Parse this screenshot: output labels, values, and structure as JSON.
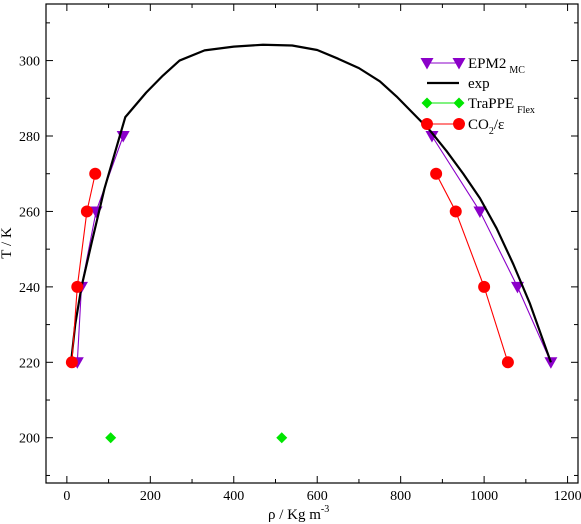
{
  "chart_data": {
    "type": "line",
    "title": "",
    "xlabel": {
      "main": "ρ    /    Kg m",
      "sup": "-3"
    },
    "ylabel": "T  /  K",
    "xlim": [
      -50,
      1225
    ],
    "ylim": [
      188,
      315
    ],
    "xticks": [
      0,
      200,
      400,
      600,
      800,
      1000,
      1200
    ],
    "yticks": [
      200,
      220,
      240,
      260,
      280,
      300
    ],
    "grid": false,
    "legend_position": "top-right",
    "series": [
      {
        "name": "EPM2",
        "name_sub": "MC",
        "color": "#8b00c9",
        "marker": "triangle-down",
        "line": true,
        "branches": [
          {
            "x": [
              25,
              35,
              70,
              135
            ],
            "y": [
              220,
              240,
              260,
              280
            ]
          },
          {
            "x": [
              875,
              990,
              1080,
              1160
            ],
            "y": [
              280,
              260,
              240,
              220
            ]
          }
        ]
      },
      {
        "name": "exp",
        "color": "#000000",
        "marker": "none",
        "line": true,
        "branches": [
          {
            "x": [
              10,
              20,
              35,
              60,
              90,
              140,
              190,
              230,
              270,
              330,
              400,
              470,
              540,
              600,
              650,
              700,
              750,
              790,
              830,
              870,
              910,
              950,
              990,
              1030,
              1070,
              1110,
              1160
            ],
            "y": [
              220,
              230,
              240,
              252,
              266,
              285,
              291.5,
              296,
              300,
              302.7,
              303.7,
              304.2,
              304,
              302.8,
              300.5,
              298,
              294.5,
              290.5,
              286,
              281.5,
              276,
              270,
              263.5,
              255.5,
              246,
              235.5,
              220
            ]
          }
        ]
      },
      {
        "name": "TraPPE",
        "name_sub": "Flex",
        "color": "#00e600",
        "marker": "diamond",
        "line": false,
        "branches": [
          {
            "x": [
              105,
              515
            ],
            "y": [
              200,
              200
            ]
          }
        ]
      },
      {
        "name": "CO",
        "name_sub": "2",
        "name_tail": "/ε",
        "color": "#ff0000",
        "marker": "circle",
        "line": true,
        "branches": [
          {
            "x": [
              12,
              25,
              48,
              68
            ],
            "y": [
              220,
              240,
              260,
              270
            ]
          },
          {
            "x": [
              885,
              932,
              1000,
              1057
            ],
            "y": [
              270,
              260,
              240,
              220
            ]
          }
        ]
      }
    ]
  }
}
